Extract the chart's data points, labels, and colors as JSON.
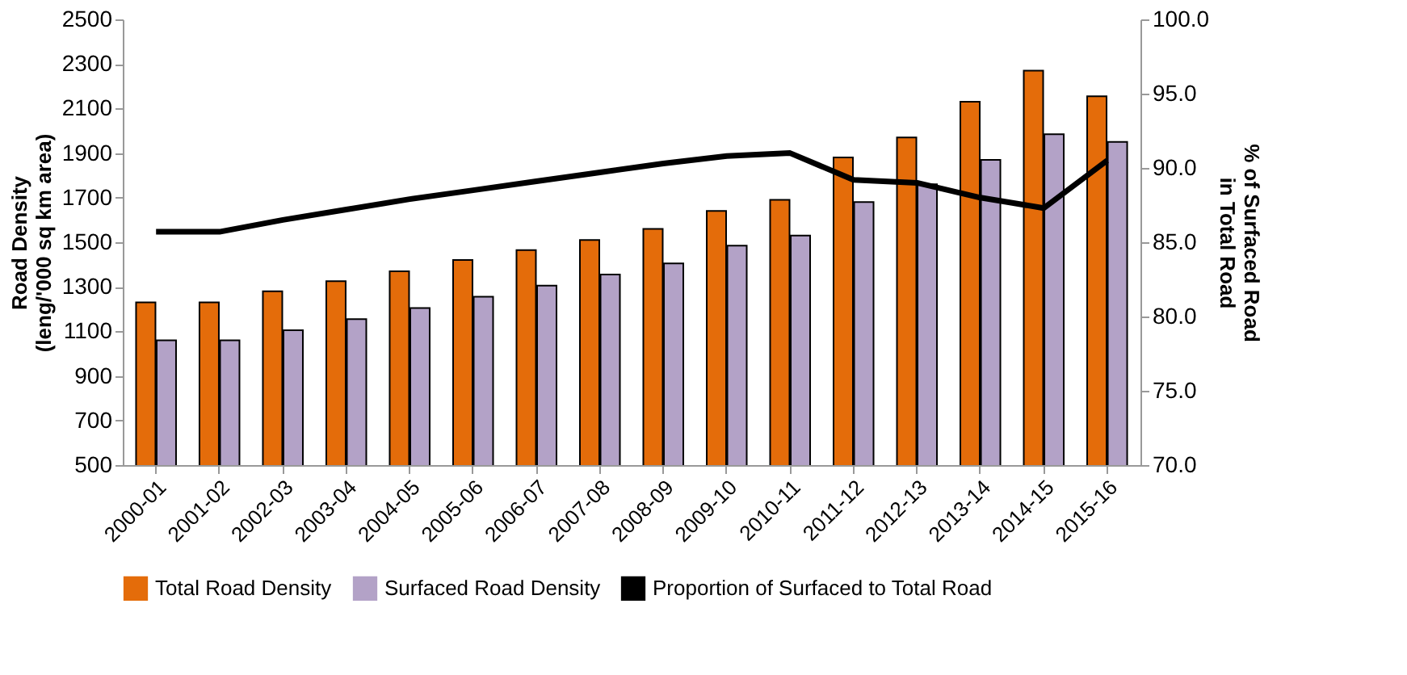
{
  "chart_data": {
    "type": "bar",
    "categories": [
      "2000-01",
      "2001-02",
      "2002-03",
      "2003-04",
      "2004-05",
      "2005-06",
      "2006-07",
      "2007-08",
      "2008-09",
      "2009-10",
      "2010-11",
      "2011-12",
      "2012-13",
      "2013-14",
      "2014-15",
      "2015-16"
    ],
    "series": [
      {
        "name": "Total Road Density",
        "color": "#e46c0a",
        "values": [
          1230,
          1230,
          1280,
          1325,
          1370,
          1420,
          1465,
          1510,
          1560,
          1640,
          1690,
          1880,
          1970,
          2130,
          2270,
          2155
        ]
      },
      {
        "name": "Surfaced Road Density",
        "color": "#b3a2c7",
        "values": [
          1060,
          1060,
          1105,
          1155,
          1205,
          1255,
          1305,
          1355,
          1405,
          1485,
          1530,
          1680,
          1760,
          1870,
          1985,
          1950
        ]
      },
      {
        "name": "Proportion of Surfaced to Total Road",
        "color": "#000000",
        "type": "line",
        "axis": "y2",
        "values": [
          85.7,
          85.7,
          86.5,
          87.2,
          87.9,
          88.5,
          89.1,
          89.7,
          90.3,
          90.8,
          91.0,
          89.2,
          89.0,
          88.0,
          87.3,
          90.5
        ]
      }
    ],
    "ylabel": "Road Density\n(leng/'000 sq km area)",
    "y2label": "% of Surfaced Road\nin Total Road",
    "ylim": [
      500,
      2500
    ],
    "yticks": [
      500,
      700,
      900,
      1100,
      1300,
      1500,
      1700,
      1900,
      2100,
      2300,
      2500
    ],
    "y2lim": [
      70,
      100
    ],
    "y2ticks": [
      {
        "value": 70,
        "label": "70.0"
      },
      {
        "value": 75,
        "label": "75.0"
      },
      {
        "value": 80,
        "label": "80.0"
      },
      {
        "value": 85,
        "label": "85.0"
      },
      {
        "value": 90,
        "label": "90.0"
      },
      {
        "value": 95,
        "label": "95.0"
      },
      {
        "value": 100,
        "label": "100.0"
      }
    ],
    "legend": "bottom",
    "grid": false,
    "marker": "none",
    "line_style": "solid"
  }
}
